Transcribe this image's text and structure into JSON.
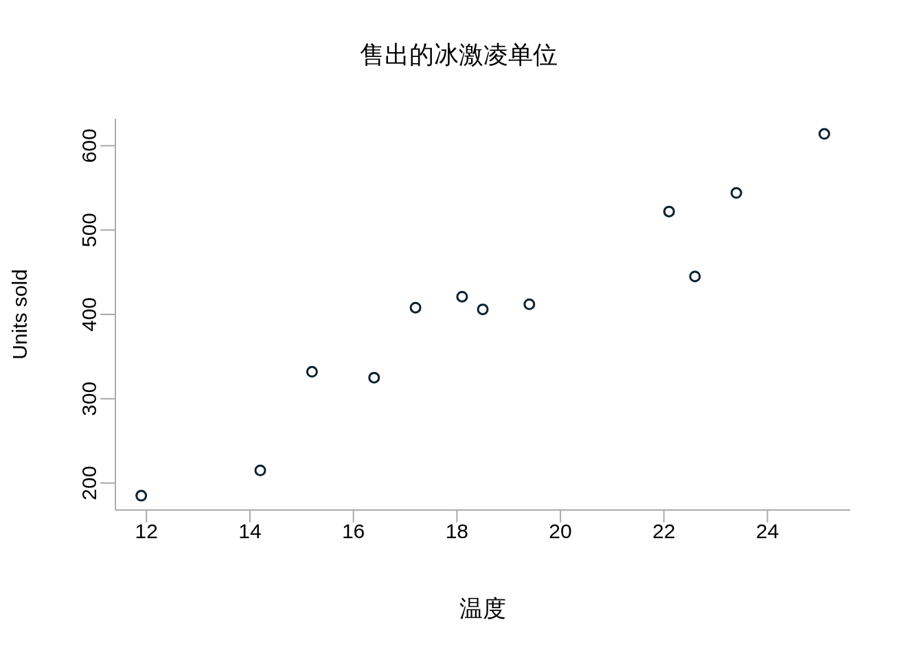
{
  "chart_data": {
    "type": "scatter",
    "title": "售出的冰激凌单位",
    "xlabel": "温度",
    "ylabel": "Units sold",
    "x": [
      14.2,
      16.4,
      11.9,
      15.2,
      18.5,
      22.1,
      19.4,
      25.1,
      23.4,
      18.1,
      22.6,
      17.2
    ],
    "values": [
      215,
      325,
      185,
      332,
      406,
      522,
      412,
      614,
      544,
      421,
      445,
      408
    ],
    "color": "#0b2230",
    "marker": "circle",
    "xlim": [
      11.4,
      25.6
    ],
    "xticks": [
      12,
      14,
      16,
      18,
      20,
      22,
      24
    ],
    "ylim": [
      168,
      632
    ],
    "yticks": [
      200,
      300,
      400,
      500,
      600
    ],
    "grid": false,
    "legend": false
  }
}
